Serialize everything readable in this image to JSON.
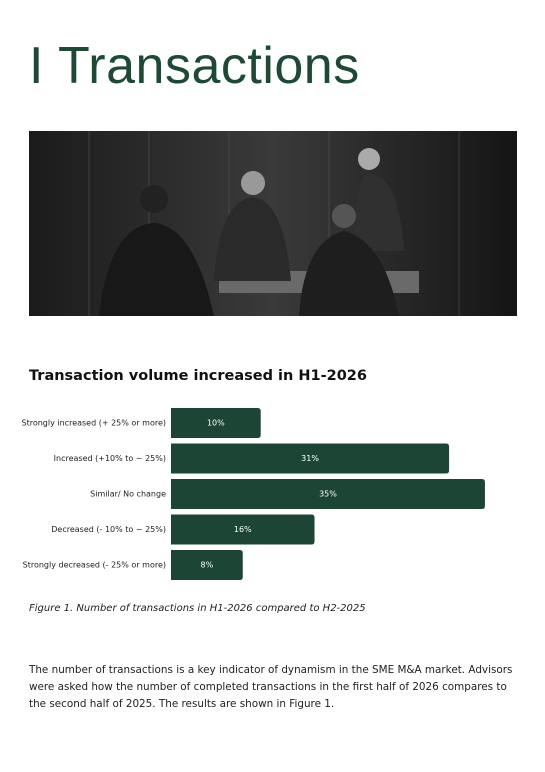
{
  "header": {
    "title": "I Transactions"
  },
  "chart_data": {
    "type": "bar",
    "orientation": "horizontal",
    "title": "Transaction volume increased in H1-2026",
    "categories": [
      "Strongly increased (+ 25% or more)",
      "Increased (+10% to ~ 25%)",
      "Similar/ No change",
      "Decreased (- 10% to ~ 25%)",
      "Strongly decreased (- 25% or more)"
    ],
    "values": [
      10,
      31,
      35,
      16,
      8
    ],
    "value_labels": [
      "10%",
      "31%",
      "35%",
      "16%",
      "8%"
    ],
    "color": "#1d4536",
    "caption": "Figure 1. Number of transactions in H1-2026 compared to H2-2025"
  },
  "body": {
    "paragraph": "The number of transactions is a key indicator of dynamism in the SME M&A market. Advisors were asked how the number of completed transactions in the first half of 2026 compares to the second half of 2025. The results are shown in Figure 1."
  }
}
